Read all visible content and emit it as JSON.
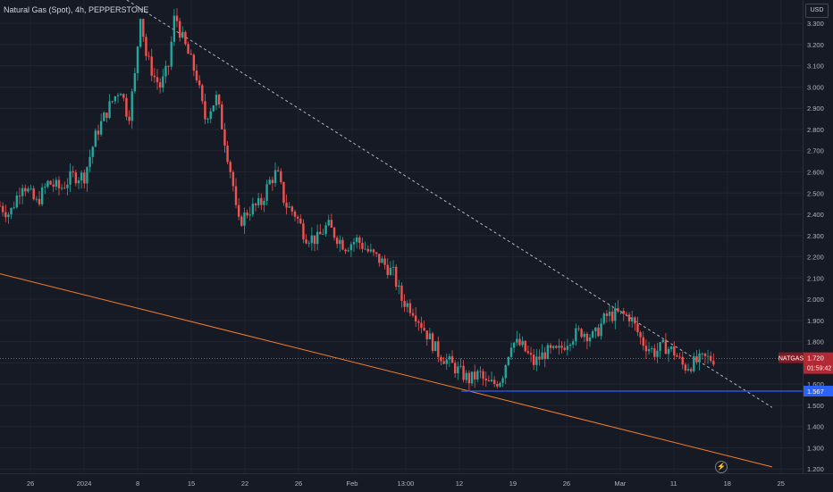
{
  "header": {
    "title": "Natural Gas (Spot), 4h, PEPPERSTONE"
  },
  "price_scale": {
    "currency": "USD"
  },
  "chart_data": {
    "type": "candlestick",
    "symbol": "NATGAS",
    "timeframe": "4h",
    "ylim": [
      1.18,
      3.41
    ],
    "y_ticks": [
      "3.300",
      "3.200",
      "3.100",
      "3.000",
      "2.900",
      "2.800",
      "2.700",
      "2.600",
      "2.500",
      "2.400",
      "2.300",
      "2.200",
      "2.100",
      "2.000",
      "1.900",
      "1.800",
      "1.700",
      "1.600",
      "1.500",
      "1.400",
      "1.300",
      "1.200"
    ],
    "x_ticks": [
      "26",
      "2024",
      "8",
      "15",
      "22",
      "26",
      "Feb",
      "13:00",
      "12",
      "19",
      "26",
      "Mar",
      "11",
      "18",
      "25"
    ],
    "last_price": {
      "label": "NATGAS",
      "value": "1.720",
      "countdown": "01:59:42"
    },
    "support": {
      "value": "1.567",
      "color": "#2962ff"
    },
    "lines": {
      "resistance_dashed": {
        "from": [
          0.158,
          3.41
        ],
        "to": [
          0.962,
          1.49
        ],
        "color": "#b2b5be"
      },
      "lower_trend": {
        "from": [
          0.0,
          2.12
        ],
        "to": [
          0.962,
          1.21
        ],
        "color": "#f57c2a"
      }
    },
    "up_color": "#26a69a",
    "down_color": "#ef5350",
    "price_path": [
      [
        0.0,
        2.44
      ],
      [
        0.012,
        2.4
      ],
      [
        0.028,
        2.55
      ],
      [
        0.045,
        2.45
      ],
      [
        0.06,
        2.55
      ],
      [
        0.075,
        2.52
      ],
      [
        0.09,
        2.58
      ],
      [
        0.105,
        2.58
      ],
      [
        0.12,
        2.78
      ],
      [
        0.135,
        2.9
      ],
      [
        0.15,
        3.0
      ],
      [
        0.16,
        2.85
      ],
      [
        0.168,
        3.05
      ],
      [
        0.175,
        3.35
      ],
      [
        0.182,
        3.15
      ],
      [
        0.192,
        3.05
      ],
      [
        0.2,
        3.0
      ],
      [
        0.21,
        3.1
      ],
      [
        0.218,
        3.35
      ],
      [
        0.225,
        3.25
      ],
      [
        0.235,
        3.15
      ],
      [
        0.245,
        3.05
      ],
      [
        0.255,
        2.85
      ],
      [
        0.262,
        2.9
      ],
      [
        0.27,
        2.95
      ],
      [
        0.28,
        2.75
      ],
      [
        0.29,
        2.55
      ],
      [
        0.296,
        2.35
      ],
      [
        0.31,
        2.42
      ],
      [
        0.325,
        2.45
      ],
      [
        0.335,
        2.55
      ],
      [
        0.345,
        2.6
      ],
      [
        0.355,
        2.45
      ],
      [
        0.368,
        2.4
      ],
      [
        0.38,
        2.3
      ],
      [
        0.395,
        2.28
      ],
      [
        0.408,
        2.35
      ],
      [
        0.418,
        2.3
      ],
      [
        0.43,
        2.25
      ],
      [
        0.445,
        2.28
      ],
      [
        0.46,
        2.22
      ],
      [
        0.475,
        2.18
      ],
      [
        0.49,
        2.12
      ],
      [
        0.5,
        2.0
      ],
      [
        0.515,
        1.95
      ],
      [
        0.53,
        1.85
      ],
      [
        0.545,
        1.75
      ],
      [
        0.56,
        1.7
      ],
      [
        0.575,
        1.65
      ],
      [
        0.585,
        1.62
      ],
      [
        0.598,
        1.65
      ],
      [
        0.605,
        1.6
      ],
      [
        0.615,
        1.6
      ],
      [
        0.625,
        1.63
      ],
      [
        0.637,
        1.8
      ],
      [
        0.65,
        1.78
      ],
      [
        0.665,
        1.7
      ],
      [
        0.68,
        1.75
      ],
      [
        0.695,
        1.75
      ],
      [
        0.71,
        1.82
      ],
      [
        0.725,
        1.85
      ],
      [
        0.74,
        1.82
      ],
      [
        0.755,
        1.92
      ],
      [
        0.77,
        1.93
      ],
      [
        0.785,
        1.92
      ],
      [
        0.8,
        1.8
      ],
      [
        0.815,
        1.75
      ],
      [
        0.828,
        1.78
      ],
      [
        0.84,
        1.75
      ],
      [
        0.852,
        1.68
      ],
      [
        0.865,
        1.7
      ],
      [
        0.878,
        1.72
      ],
      [
        0.89,
        1.72
      ]
    ]
  },
  "widgets": {
    "flash_icon": "lightning"
  }
}
